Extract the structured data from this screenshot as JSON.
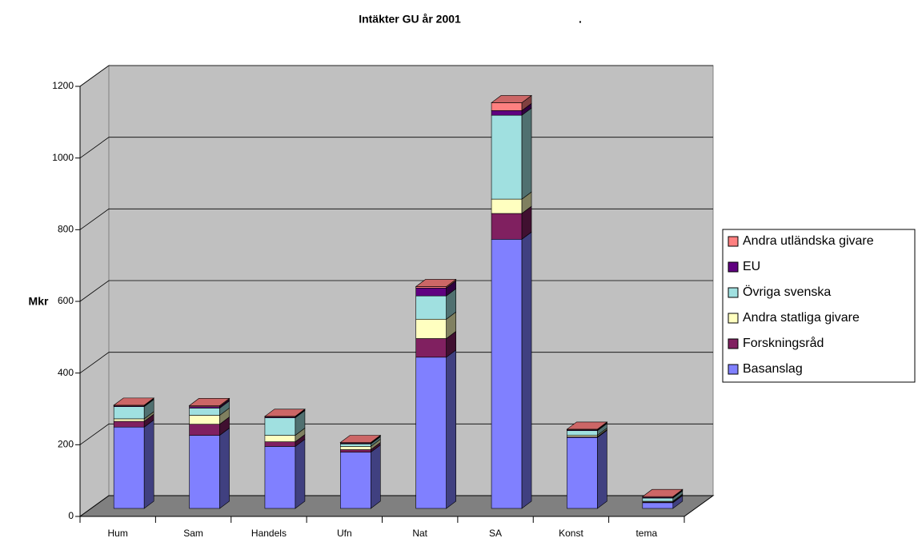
{
  "chart_data": {
    "type": "bar3d_stacked",
    "title": "Intäkter GU år 2001",
    "subtitle": ".",
    "y_label": "Mkr",
    "categories": [
      "Hum",
      "Sam",
      "Handels",
      "Ufn",
      "Nat",
      "SA",
      "Konst",
      "tema"
    ],
    "series": [
      {
        "name": "Basanslag",
        "color": "#8080ff",
        "values": [
          227,
          204,
          173,
          157,
          422,
          751,
          198,
          16
        ]
      },
      {
        "name": "Forskningsråd",
        "color": "#802060",
        "values": [
          16,
          31,
          13,
          7,
          52,
          72,
          2,
          2
        ]
      },
      {
        "name": "Andra statliga givare",
        "color": "#ffffc0",
        "values": [
          7,
          25,
          18,
          9,
          54,
          40,
          4,
          2
        ]
      },
      {
        "name": "Övriga svenska",
        "color": "#a0e0e0",
        "values": [
          34,
          20,
          49,
          7,
          65,
          234,
          13,
          9
        ]
      },
      {
        "name": "EU",
        "color": "#600080",
        "values": [
          2,
          4,
          2,
          2,
          22,
          13,
          2,
          2
        ]
      },
      {
        "name": "Andra utländska givare",
        "color": "#ff8080",
        "values": [
          2,
          3,
          2,
          2,
          4,
          22,
          2,
          2
        ]
      }
    ],
    "ylim": [
      0,
      1200
    ],
    "yticks": [
      0,
      200,
      400,
      600,
      800,
      1000,
      1200
    ],
    "grid": true,
    "legend": "right"
  }
}
